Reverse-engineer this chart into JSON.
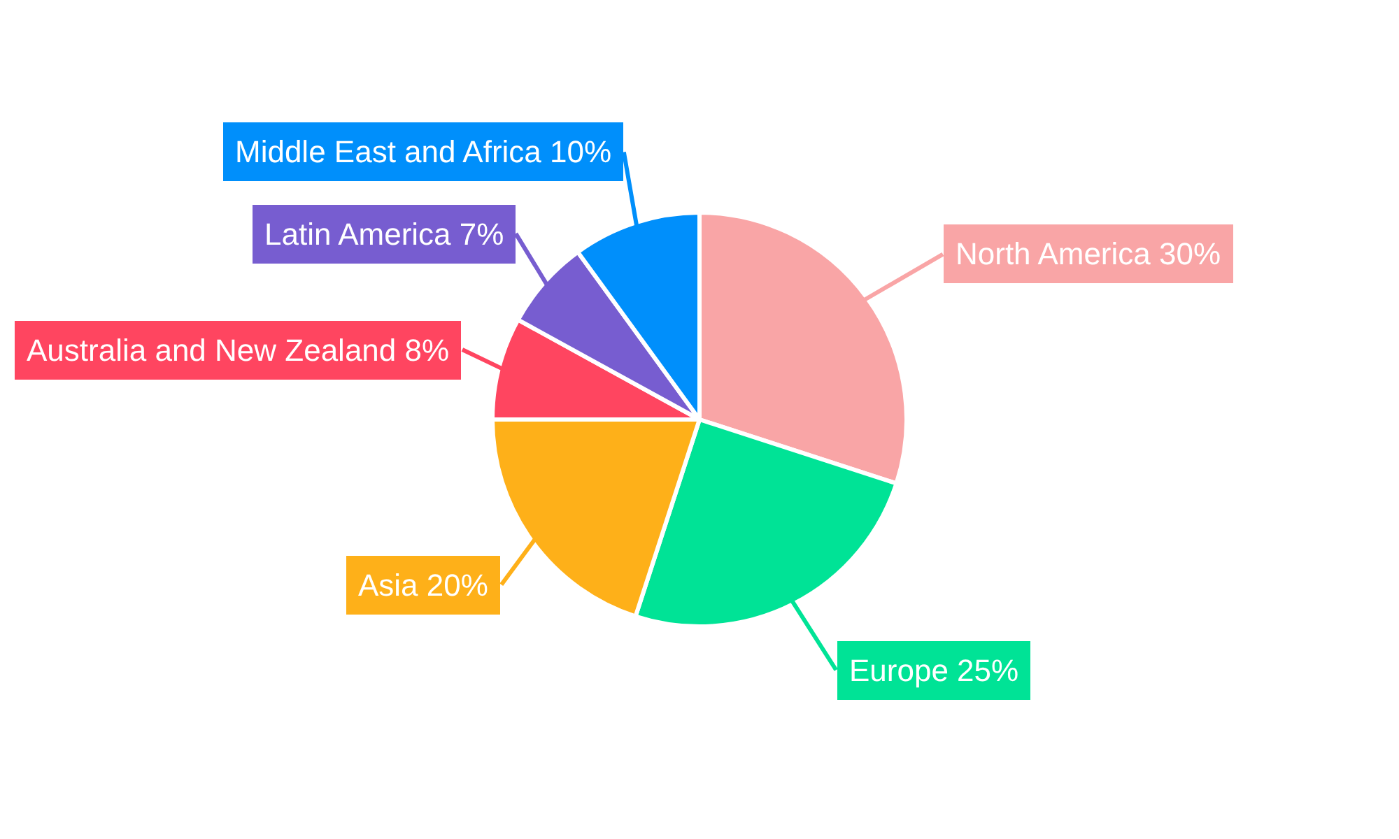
{
  "chart_data": {
    "type": "pie",
    "categories": [
      "North America",
      "Europe",
      "Asia",
      "Australia and New Zealand",
      "Latin America",
      "Middle East and Africa"
    ],
    "values": [
      30,
      25,
      20,
      8,
      7,
      10
    ],
    "value_labels": [
      "30%",
      "25%",
      "20%",
      "8%",
      "7%",
      "10%"
    ],
    "colors": [
      "#f9a5a6",
      "#00e396",
      "#feb019",
      "#ff4560",
      "#775dd0",
      "#008ffb"
    ]
  }
}
